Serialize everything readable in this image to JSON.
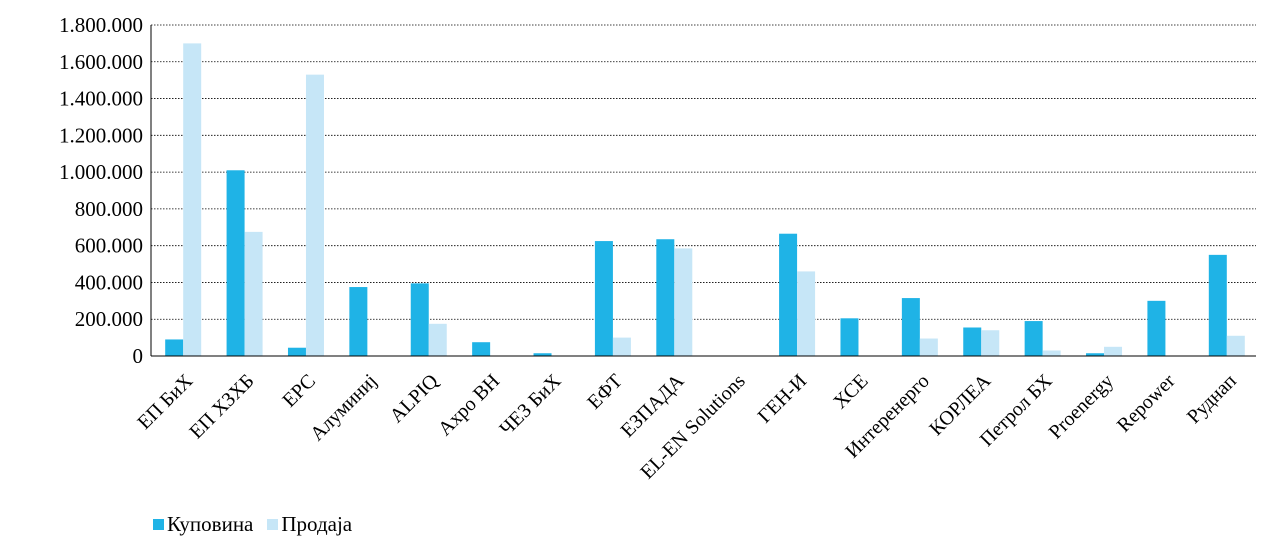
{
  "chart_data": {
    "type": "bar",
    "categories": [
      "ЕП БиХ",
      "ЕП ХЗХБ",
      "ЕРС",
      "Алуминиј",
      "ALPIQ",
      "Axpo BH",
      "ЧЕЗ БиХ",
      "ЕФТ",
      "ЕЗПАДА",
      "EL-EN Solutions",
      "ГЕН-И",
      "ХСЕ",
      "Интеренерго",
      "КОРЛЕА",
      "Петрол БХ",
      "Proenergy",
      "Repower",
      "Руднап"
    ],
    "series": [
      {
        "name": "Куповина",
        "color": "#1FB3E6",
        "values": [
          90000,
          1010000,
          45000,
          375000,
          395000,
          75000,
          15000,
          625000,
          635000,
          0,
          665000,
          205000,
          315000,
          155000,
          190000,
          15000,
          300000,
          550000
        ]
      },
      {
        "name": "Продаја",
        "color": "#C6E6F7",
        "values": [
          1700000,
          675000,
          1530000,
          0,
          175000,
          0,
          0,
          100000,
          585000,
          0,
          460000,
          0,
          95000,
          140000,
          30000,
          50000,
          0,
          110000
        ]
      }
    ],
    "ylim": [
      0,
      1800000
    ],
    "yticks": [
      0,
      200000,
      400000,
      600000,
      800000,
      1000000,
      1200000,
      1400000,
      1600000,
      1800000
    ],
    "ytick_labels": [
      "0",
      "200.000",
      "400.000",
      "600.000",
      "800.000",
      "1.000.000",
      "1.200.000",
      "1.400.000",
      "1.600.000",
      "1.800.000"
    ],
    "grid": true,
    "legend_position": "bottom-left",
    "title": "",
    "xlabel": "",
    "ylabel": ""
  }
}
